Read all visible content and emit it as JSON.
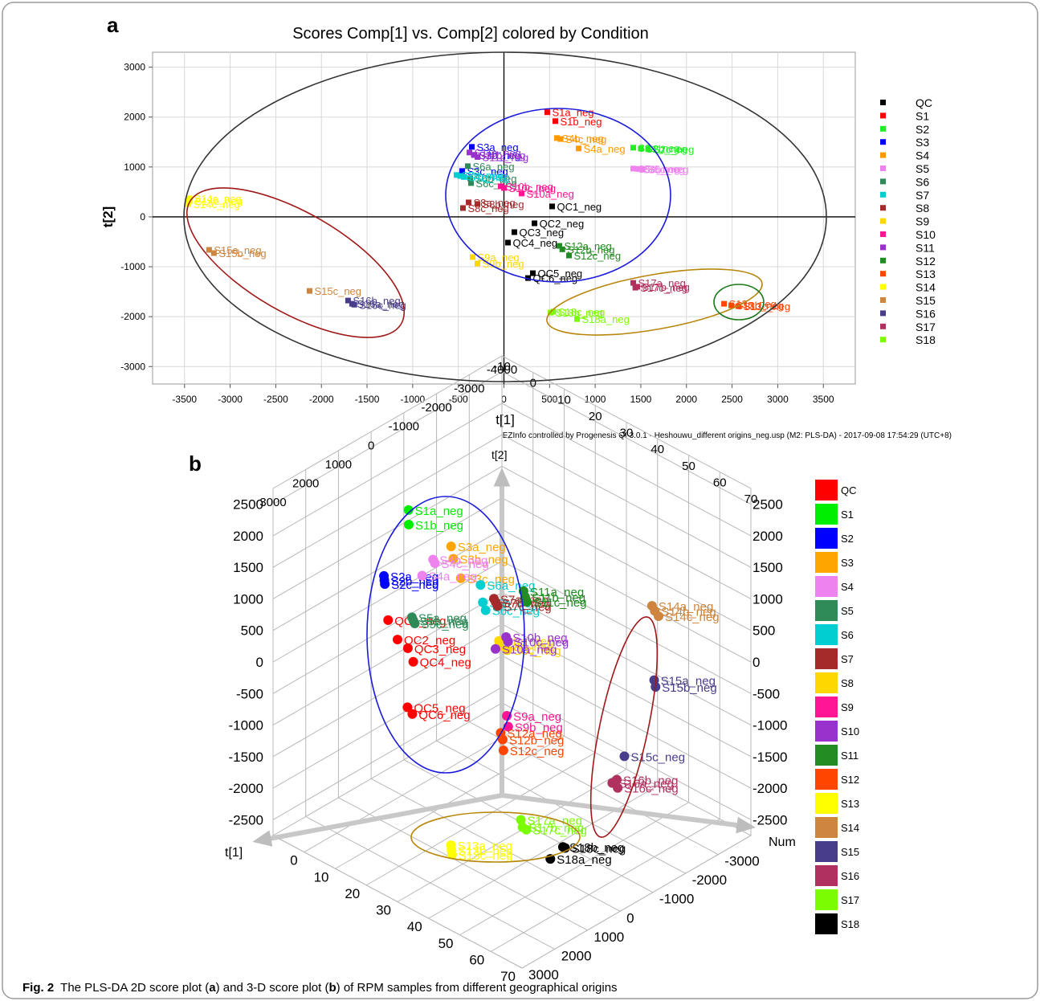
{
  "caption": {
    "label": "Fig. 2",
    "parts": [
      "The PLS-DA 2D score plot (",
      "a",
      ") and 3-D score plot (",
      "b",
      ") of RPM samples from different geographical origins"
    ]
  },
  "chart_data": [
    {
      "type": "scatter",
      "panel_label": "a",
      "title": "Scores Comp[1] vs. Comp[2] colored by Condition",
      "xlabel": "t[1]",
      "ylabel": "t[2]",
      "footnote": "EZInfo controlled by Progenesis QI 3.0.1 - Heshouwu_different origins_neg.usp (M2: PLS-DA) - 2017-09-08 17:54:29 (UTC+8)",
      "xlim": [
        -3850,
        3850
      ],
      "ylim": [
        -3350,
        3300
      ],
      "xticks": [
        -3500,
        -3000,
        -2500,
        -2000,
        -1500,
        -1000,
        -500,
        0,
        500,
        1000,
        1500,
        2000,
        2500,
        3000,
        3500
      ],
      "yticks": [
        -3000,
        -2000,
        -1000,
        0,
        1000,
        2000,
        3000
      ],
      "grid": true,
      "series": [
        {
          "name": "QC",
          "color": "#000000",
          "x": [
            528,
            335,
            114,
            44,
            317,
            264
          ],
          "y": [
            210,
            -129,
            -306,
            -516,
            -1129,
            -1226
          ],
          "point_labels": [
            "QC1_neg",
            "QC2_neg",
            "QC3_neg",
            "QC4_neg",
            "QC5_neg",
            "QC6_neg"
          ]
        },
        {
          "name": "S1",
          "color": "#ff0000",
          "x": [
            475,
            563
          ],
          "y": [
            2097,
            1919
          ],
          "point_labels": [
            "S1a_neg",
            "S1b_neg"
          ]
        },
        {
          "name": "S2",
          "color": "#22ee22",
          "x": [
            1417,
            1500,
            1580
          ],
          "y": [
            1387,
            1370,
            1360
          ],
          "point_labels": [
            "S2a_neg",
            "S2b_neg",
            "S2c_neg"
          ]
        },
        {
          "name": "S3",
          "color": "#0000ff",
          "x": [
            -352,
            -326,
            -458
          ],
          "y": [
            1403,
            1242,
            919
          ],
          "point_labels": [
            "S3a_neg",
            "S3b_neg",
            "S3c_neg"
          ]
        },
        {
          "name": "S4",
          "color": "#ff9900",
          "x": [
            819,
            581,
            620
          ],
          "y": [
            1371,
            1580,
            1560
          ],
          "point_labels": [
            "S4a_neg",
            "S4b_neg",
            "S4c_neg"
          ]
        },
        {
          "name": "S5",
          "color": "#ee82ee",
          "x": [
            1417,
            1470,
            1520
          ],
          "y": [
            968,
            960,
            955
          ],
          "point_labels": [
            "S5a_neg",
            "S5b_neg",
            "S5c_neg"
          ]
        },
        {
          "name": "S6",
          "color": "#2e8b57",
          "x": [
            -396,
            -370,
            -361
          ],
          "y": [
            1016,
            774,
            677
          ],
          "point_labels": [
            "S6a_neg",
            "S6b_neg",
            "S6c_neg"
          ]
        },
        {
          "name": "S7",
          "color": "#00ced1",
          "x": [
            -519,
            -480,
            -440
          ],
          "y": [
            839,
            820,
            800
          ],
          "point_labels": [
            "S7a_neg",
            "S7b_neg",
            "S7c_neg"
          ]
        },
        {
          "name": "S8",
          "color": "#a52a2a",
          "x": [
            -387,
            -290,
            -449
          ],
          "y": [
            290,
            258,
            177
          ],
          "point_labels": [
            "S8a_neg",
            "S8b_neg",
            "S8c_neg"
          ]
        },
        {
          "name": "S9",
          "color": "#ffd700",
          "x": [
            -343,
            -290
          ],
          "y": [
            -806,
            -935
          ],
          "point_labels": [
            "S9a_neg",
            "S9b_neg"
          ]
        },
        {
          "name": "S10",
          "color": "#ff1493",
          "x": [
            194,
            -35,
            0
          ],
          "y": [
            468,
            613,
            580
          ],
          "point_labels": [
            "S10a_neg",
            "S10b_neg",
            "S10c_neg"
          ]
        },
        {
          "name": "S11",
          "color": "#9932cc",
          "x": [
            -378,
            -330,
            -290
          ],
          "y": [
            1290,
            1240,
            1200
          ],
          "point_labels": [
            "S11a_neg",
            "S11b_neg",
            "S11c_neg"
          ]
        },
        {
          "name": "S12",
          "color": "#228b22",
          "x": [
            607,
            640,
            713
          ],
          "y": [
            -581,
            -650,
            -774
          ],
          "point_labels": [
            "S12a_neg",
            "S12b_neg",
            "S12c_neg"
          ]
        },
        {
          "name": "S13",
          "color": "#ff4500",
          "x": [
            2412,
            2491,
            2570
          ],
          "y": [
            -1742,
            -1774,
            -1790
          ],
          "point_labels": [
            "S13a_neg",
            "S13b_neg",
            "S13c_neg"
          ]
        },
        {
          "name": "S14",
          "color": "#ffff00",
          "x": [
            -3451,
            -3440,
            -3460
          ],
          "y": [
            371,
            320,
            258
          ],
          "point_labels": [
            "S14a_neg",
            "S14b_neg",
            "S14c_neg"
          ]
        },
        {
          "name": "S15",
          "color": "#cd853f",
          "x": [
            -3231,
            -3178,
            -2130
          ],
          "y": [
            -661,
            -726,
            -1484
          ],
          "point_labels": [
            "S15a_neg",
            "S15b_neg",
            "S15c_neg"
          ]
        },
        {
          "name": "S16",
          "color": "#483d8b",
          "x": [
            -1664,
            -1708,
            -1640
          ],
          "y": [
            -1742,
            -1677,
            -1760
          ],
          "point_labels": [
            "S16a_neg",
            "S16b_neg",
            "S16c_neg"
          ]
        },
        {
          "name": "S17",
          "color": "#b03060",
          "x": [
            1417,
            1461,
            1440
          ],
          "y": [
            -1323,
            -1400,
            -1419
          ],
          "point_labels": [
            "S17a_neg",
            "S17b_neg",
            "S17c_neg"
          ]
        },
        {
          "name": "S18",
          "color": "#7cfc00",
          "x": [
            801,
            511,
            540
          ],
          "y": [
            -2048,
            -1919,
            -1900
          ],
          "point_labels": [
            "S18a_neg",
            "S18b_neg",
            "S18c_neg"
          ]
        }
      ]
    },
    {
      "type": "scatter3d",
      "panel_label": "b",
      "alabel": "t[1]",
      "blabel": "Num",
      "zlabel": "t[2]",
      "alim": [
        -10,
        70
      ],
      "aticks": [
        0,
        10,
        20,
        30,
        40,
        50,
        60,
        70
      ],
      "aticks_top": [
        -10,
        0,
        10,
        20,
        30,
        40,
        50,
        60,
        70
      ],
      "blim": [
        -4000,
        3000
      ],
      "bticks": [
        3000,
        2000,
        1000,
        0,
        -1000,
        -2000,
        -3000
      ],
      "bticks_top": [
        3000,
        2000,
        1000,
        0,
        -1000,
        -2000,
        -3000,
        -4000
      ],
      "zlim": [
        -2750,
        2750
      ],
      "zticks": [
        -2500,
        -2000,
        -1500,
        -1000,
        -500,
        0,
        500,
        1000,
        1500,
        2000,
        2500
      ],
      "series": [
        {
          "name": "QC",
          "color": "#ff0000",
          "num": [
            1,
            2,
            3,
            4,
            5,
            6
          ],
          "t1": [
            528,
            335,
            114,
            44,
            317,
            264
          ],
          "t2": [
            210,
            -129,
            -306,
            -516,
            -1129,
            -1226
          ],
          "point_labels": [
            "QC1_neg",
            "QC2_neg",
            "QC3_neg",
            "QC4_neg",
            "QC5_neg",
            "QC6_neg"
          ]
        },
        {
          "name": "S1",
          "color": "#00ee00",
          "num": [
            7,
            8
          ],
          "t1": [
            475,
            563
          ],
          "t2": [
            2097,
            1919
          ],
          "point_labels": [
            "S1a_neg",
            "S1b_neg"
          ]
        },
        {
          "name": "S2",
          "color": "#0000ff",
          "num": [
            9,
            10,
            11
          ],
          "t1": [
            1417,
            1500,
            1580
          ],
          "t2": [
            1387,
            1370,
            1360
          ],
          "point_labels": [
            "S2a_neg",
            "S2b_neg",
            "S2c_neg"
          ]
        },
        {
          "name": "S3",
          "color": "#ffa500",
          "num": [
            12,
            13,
            14
          ],
          "t1": [
            -352,
            -326,
            -458
          ],
          "t2": [
            1403,
            1242,
            919
          ],
          "point_labels": [
            "S3a_neg",
            "S3b_neg",
            "S3c_neg"
          ]
        },
        {
          "name": "S4",
          "color": "#ee82ee",
          "num": [
            15,
            16,
            17
          ],
          "t1": [
            819,
            581,
            620
          ],
          "t2": [
            1371,
            1580,
            1560
          ],
          "point_labels": [
            "S4a_neg",
            "S4b_neg",
            "S4c_neg"
          ]
        },
        {
          "name": "S5",
          "color": "#2e8b57",
          "num": [
            18,
            19,
            20
          ],
          "t1": [
            1417,
            1470,
            1520
          ],
          "t2": [
            968,
            960,
            955
          ],
          "point_labels": [
            "S5a_neg",
            "S5b_neg",
            "S5c_neg"
          ]
        },
        {
          "name": "S6",
          "color": "#00ced1",
          "num": [
            21,
            22,
            23
          ],
          "t1": [
            -396,
            -370,
            -361
          ],
          "t2": [
            1016,
            774,
            677
          ],
          "point_labels": [
            "S6a_neg",
            "S6b_neg",
            "S6c_neg"
          ]
        },
        {
          "name": "S7",
          "color": "#a52a2a",
          "num": [
            24,
            25,
            26
          ],
          "t1": [
            -519,
            -480,
            -440
          ],
          "t2": [
            839,
            820,
            800
          ],
          "point_labels": [
            "S7a_neg",
            "S7b_neg",
            "S7c_neg"
          ]
        },
        {
          "name": "S8",
          "color": "#ffd700",
          "num": [
            27,
            28,
            29
          ],
          "t1": [
            -387,
            -290,
            -449
          ],
          "t2": [
            290,
            258,
            177
          ],
          "point_labels": [
            "S8a_neg",
            "S8b_neg",
            "S8c_neg"
          ]
        },
        {
          "name": "S9",
          "color": "#ff1493",
          "num": [
            30,
            31
          ],
          "t1": [
            -343,
            -290
          ],
          "t2": [
            -806,
            -935
          ],
          "point_labels": [
            "S9a_neg",
            "S9b_neg"
          ]
        },
        {
          "name": "S10",
          "color": "#9932cc",
          "num": [
            32,
            33,
            34
          ],
          "t1": [
            194,
            -35,
            0
          ],
          "t2": [
            468,
            613,
            580
          ],
          "point_labels": [
            "S10a_neg",
            "S10b_neg",
            "S10c_neg"
          ]
        },
        {
          "name": "S11",
          "color": "#228b22",
          "num": [
            35,
            36,
            37
          ],
          "t1": [
            -378,
            -330,
            -290
          ],
          "t2": [
            1290,
            1240,
            1200
          ],
          "point_labels": [
            "S11a_neg",
            "S11b_neg",
            "S11c_neg"
          ]
        },
        {
          "name": "S12",
          "color": "#ff4500",
          "num": [
            38,
            39,
            40
          ],
          "t1": [
            607,
            640,
            713
          ],
          "t2": [
            -581,
            -650,
            -774
          ],
          "point_labels": [
            "S12a_neg",
            "S12b_neg",
            "S12c_neg"
          ]
        },
        {
          "name": "S13",
          "color": "#ffff00",
          "num": [
            41,
            42,
            43
          ],
          "t1": [
            2412,
            2491,
            2570
          ],
          "t2": [
            -1742,
            -1774,
            -1790
          ],
          "point_labels": [
            "S13a_neg",
            "S13b_neg",
            "S13c_neg"
          ]
        },
        {
          "name": "S14",
          "color": "#cd853f",
          "num": [
            44,
            45,
            46
          ],
          "t1": [
            -3451,
            -3440,
            -3460
          ],
          "t2": [
            371,
            320,
            258
          ],
          "point_labels": [
            "S14a_neg",
            "S14b_neg",
            "S14c_neg"
          ]
        },
        {
          "name": "S15",
          "color": "#483d8b",
          "num": [
            47,
            48,
            49
          ],
          "t1": [
            -3231,
            -3178,
            -2130
          ],
          "t2": [
            -661,
            -726,
            -1484
          ],
          "point_labels": [
            "S15a_neg",
            "S15b_neg",
            "S15c_neg"
          ]
        },
        {
          "name": "S16",
          "color": "#b03060",
          "num": [
            50,
            51,
            52
          ],
          "t1": [
            -1664,
            -1708,
            -1640
          ],
          "t2": [
            -1742,
            -1677,
            -1760
          ],
          "point_labels": [
            "S16a_neg",
            "S16b_neg",
            "S16c_neg"
          ]
        },
        {
          "name": "S17",
          "color": "#7cfc00",
          "num": [
            53,
            54,
            55
          ],
          "t1": [
            1417,
            1461,
            1440
          ],
          "t2": [
            -1323,
            -1400,
            -1419
          ],
          "point_labels": [
            "S17a_neg",
            "S17b_neg",
            "S17c_neg"
          ]
        },
        {
          "name": "S18",
          "color": "#000000",
          "num": [
            56,
            57,
            58
          ],
          "t1": [
            801,
            511,
            540
          ],
          "t2": [
            -2048,
            -1919,
            -1900
          ],
          "point_labels": [
            "S18a_neg",
            "S18b_neg",
            "S18c_neg"
          ]
        }
      ]
    }
  ]
}
